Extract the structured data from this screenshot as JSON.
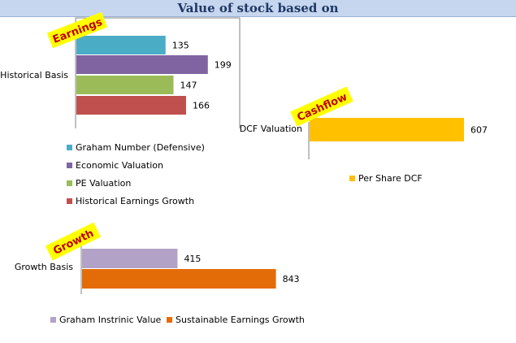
{
  "title": "Value of stock based on",
  "chart_data": [
    {
      "type": "bar",
      "tag": "Earnings",
      "categories": [
        "Historical Basis"
      ],
      "series": [
        {
          "name": "Graham Number (Defensive)",
          "values": [
            135
          ],
          "color": "#4bacc6"
        },
        {
          "name": "Economic Valuation",
          "values": [
            199
          ],
          "color": "#8064a2"
        },
        {
          "name": "PE Valuation",
          "values": [
            147
          ],
          "color": "#9bbb59"
        },
        {
          "name": "Historical Earnings Growth",
          "values": [
            166
          ],
          "color": "#c0504d"
        }
      ]
    },
    {
      "type": "bar",
      "tag": "Cashflow",
      "categories": [
        "DCF Valuation"
      ],
      "series": [
        {
          "name": "Per Share DCF",
          "values": [
            607
          ],
          "color": "#ffc000"
        }
      ]
    },
    {
      "type": "bar",
      "tag": "Growth",
      "categories": [
        "Growth Basis"
      ],
      "series": [
        {
          "name": "Graham Instrinic Value",
          "values": [
            415
          ],
          "color": "#b3a2c7"
        },
        {
          "name": "Sustainable Earnings Growth",
          "values": [
            843
          ],
          "color": "#e36c09"
        }
      ]
    }
  ]
}
